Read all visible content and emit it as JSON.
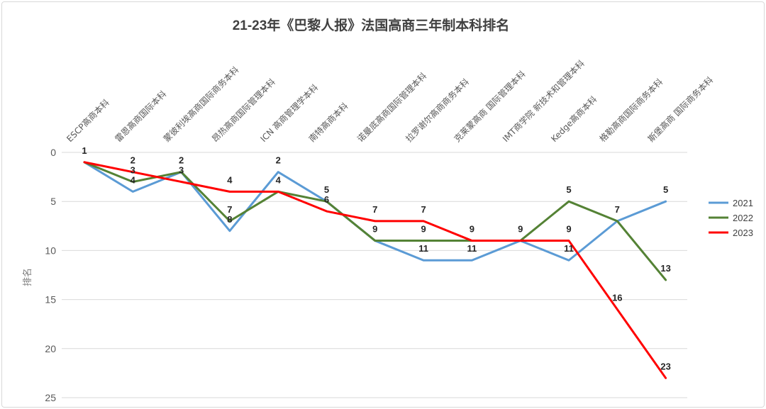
{
  "chart_data": {
    "type": "line",
    "title": "21-23年《巴黎人报》法国高商三年制本科排名",
    "xlabel": "",
    "ylabel": "排名",
    "y_inverted": true,
    "ylim": [
      0,
      25
    ],
    "yticks": [
      0,
      5,
      10,
      15,
      20,
      25
    ],
    "grid": true,
    "legend_position": "right",
    "categories": [
      "ESCP高商本科",
      "雷恩高商国际本科",
      "蒙彼利埃高商国际商务本科",
      "昂热高商国际管理本科",
      "ICN 高商管理学本科",
      "南特高商本科",
      "诺曼底高商国际管理本科",
      "拉罗谢尔高商商务本科",
      "克莱蒙高商 国际管理本科",
      "IMT商学院 新技术和管理本科",
      "Kedge高商本科",
      "格勒高商国际商务本科",
      "斯堡高商 国际商务本科"
    ],
    "series": [
      {
        "name": "2021",
        "color": "#5b9bd5",
        "values": [
          1,
          4,
          2,
          8,
          2,
          5,
          9,
          11,
          11,
          9,
          11,
          7,
          5
        ]
      },
      {
        "name": "2022",
        "color": "#548235",
        "values": [
          1,
          3,
          2,
          7,
          4,
          5,
          9,
          9,
          9,
          9,
          5,
          7,
          13
        ]
      },
      {
        "name": "2023",
        "color": "#ff0000",
        "values": [
          1,
          2,
          3,
          4,
          4,
          6,
          7,
          7,
          9,
          9,
          9,
          16,
          23
        ]
      }
    ]
  }
}
